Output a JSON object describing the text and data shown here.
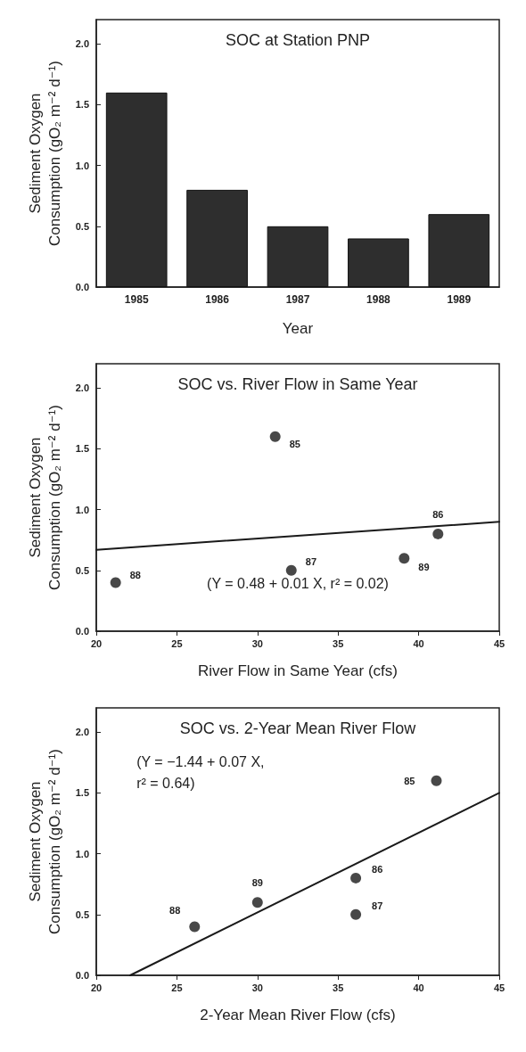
{
  "chart_data": [
    {
      "type": "bar",
      "title": "SOC at Station PNP",
      "xlabel": "Year",
      "ylabel": "Sediment Oxygen Consumption (gO₂ m⁻² d⁻¹)",
      "categories": [
        "1985",
        "1986",
        "1987",
        "1988",
        "1989"
      ],
      "values": [
        1.6,
        0.8,
        0.5,
        0.4,
        0.6
      ],
      "color": "#2e2e2e",
      "ylim": [
        0,
        2.2
      ],
      "yticks": [
        {
          "value": 0,
          "label": "0.0"
        },
        {
          "value": 0.5,
          "label": "0.5"
        },
        {
          "value": 1,
          "label": "1.0"
        },
        {
          "value": 1.5,
          "label": "1.5"
        },
        {
          "value": 2,
          "label": "2.0"
        }
      ],
      "grid": false
    },
    {
      "type": "scatter",
      "title": "SOC vs. River Flow in Same Year",
      "xlabel": "River Flow in Same Year (cfs)",
      "ylabel": "Sediment Oxygen Consumption (gO₂ m⁻² d⁻¹)",
      "series": [
        {
          "type": "scatter",
          "color": "#1a1a1a",
          "marker": "circle",
          "x": [
            21.2,
            31.1,
            32.1,
            39.1,
            41.2
          ],
          "values": [
            0.4,
            1.6,
            0.5,
            0.6,
            0.8
          ]
        },
        {
          "type": "line",
          "color": "#1a1a1a",
          "marker": "none",
          "line_style": "solid",
          "x": [
            20,
            45
          ],
          "values": [
            0.67,
            0.9
          ]
        }
      ],
      "xlim": [
        20,
        45
      ],
      "xticks": [
        20,
        25,
        30,
        35,
        40,
        45
      ],
      "ylim": [
        0,
        2.2
      ],
      "yticks": [
        {
          "value": 0,
          "label": "0.0"
        },
        {
          "value": 0.5,
          "label": "0.5"
        },
        {
          "value": 1,
          "label": "1.0"
        },
        {
          "value": 1.5,
          "label": "1.5"
        },
        {
          "value": 2,
          "label": "2.0"
        }
      ],
      "annotations": [
        "(Y = 0.48 + 0.01 X, r² = 0.02)",
        {
          "text": "88",
          "x": 21.2,
          "y": 0.4
        },
        {
          "text": "85",
          "x": 31.1,
          "y": 1.6
        },
        {
          "text": "87",
          "x": 32.1,
          "y": 0.5
        },
        {
          "text": "89",
          "x": 39.1,
          "y": 0.6
        },
        {
          "text": "86",
          "x": 41.2,
          "y": 0.8
        }
      ],
      "grid": false
    },
    {
      "type": "scatter",
      "title": "SOC vs. 2-Year Mean River Flow",
      "xlabel": "2-Year Mean River Flow (cfs)",
      "ylabel": "Sediment Oxygen Consumption (gO₂ m⁻² d⁻¹)",
      "series": [
        {
          "type": "scatter",
          "color": "#1a1a1a",
          "marker": "circle",
          "x": [
            26.1,
            30,
            36.1,
            36.1,
            41.1
          ],
          "values": [
            0.4,
            0.6,
            0.8,
            0.5,
            1.6
          ]
        },
        {
          "type": "line",
          "color": "#1a1a1a",
          "marker": "none",
          "line_style": "solid",
          "x": [
            22.1,
            45
          ],
          "values": [
            0,
            1.5
          ]
        }
      ],
      "xlim": [
        20,
        45
      ],
      "xticks": [
        20,
        25,
        30,
        35,
        40,
        45
      ],
      "ylim": [
        0,
        2.2
      ],
      "yticks": [
        {
          "value": 0,
          "label": "0.0"
        },
        {
          "value": 0.5,
          "label": "0.5"
        },
        {
          "value": 1,
          "label": "1.0"
        },
        {
          "value": 1.5,
          "label": "1.5"
        },
        {
          "value": 2,
          "label": "2.0"
        }
      ],
      "annotations": [
        "(Y = −1.44 + 0.07 X, r² = 0.64)",
        {
          "text": "88",
          "x": 26.1,
          "y": 0.4
        },
        {
          "text": "89",
          "x": 30,
          "y": 0.6
        },
        {
          "text": "86",
          "x": 36.1,
          "y": 0.8
        },
        {
          "text": "87",
          "x": 36.1,
          "y": 0.5
        },
        {
          "text": "85",
          "x": 41.1,
          "y": 1.6
        }
      ],
      "grid": false
    }
  ]
}
